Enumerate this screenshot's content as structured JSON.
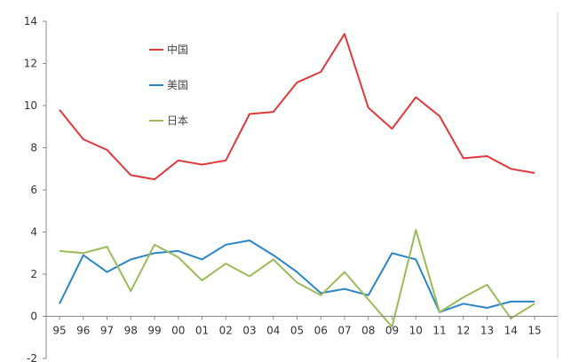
{
  "chart_data": {
    "type": "line",
    "title": "",
    "xlabel": "",
    "ylabel": "",
    "ylim": [
      -2,
      14
    ],
    "yticks": [
      -2,
      0,
      2,
      4,
      6,
      8,
      10,
      12,
      14
    ],
    "categories": [
      "95",
      "96",
      "97",
      "98",
      "99",
      "00",
      "01",
      "02",
      "03",
      "04",
      "05",
      "06",
      "07",
      "08",
      "09",
      "10",
      "11",
      "12",
      "13",
      "14",
      "15"
    ],
    "grid": false,
    "legend": "top-left",
    "series": [
      {
        "name": "中国",
        "color": "#e0383b",
        "values": [
          9.8,
          8.4,
          7.9,
          6.7,
          6.5,
          7.4,
          7.2,
          7.4,
          9.6,
          9.7,
          11.1,
          11.6,
          13.4,
          9.9,
          8.9,
          10.4,
          9.5,
          7.5,
          7.6,
          7.0,
          6.8
        ]
      },
      {
        "name": "美国",
        "color": "#2a86c8",
        "values": [
          0.6,
          2.9,
          2.1,
          2.7,
          3.0,
          3.1,
          2.7,
          3.4,
          3.6,
          2.9,
          2.1,
          1.1,
          1.3,
          1.0,
          3.0,
          2.7,
          0.2,
          0.6,
          0.4,
          0.7,
          0.7
        ]
      },
      {
        "name": "日本",
        "color": "#9bbb59",
        "values": [
          3.1,
          3.0,
          3.3,
          1.2,
          3.4,
          2.8,
          1.7,
          2.5,
          1.9,
          2.7,
          1.6,
          1.0,
          2.1,
          0.8,
          -0.5,
          4.1,
          0.2,
          0.9,
          1.5,
          -0.1,
          0.6
        ]
      }
    ]
  }
}
